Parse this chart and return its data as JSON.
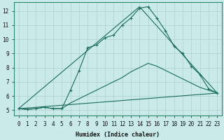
{
  "xlabel": "Humidex (Indice chaleur)",
  "background_color": "#caeaea",
  "grid_color": "#b0d4d4",
  "line_color": "#1a6b5a",
  "xlim": [
    -0.5,
    23.5
  ],
  "ylim": [
    4.6,
    12.6
  ],
  "xticks": [
    0,
    1,
    2,
    3,
    4,
    5,
    6,
    7,
    8,
    9,
    10,
    11,
    12,
    13,
    14,
    15,
    16,
    17,
    18,
    19,
    20,
    21,
    22,
    23
  ],
  "yticks": [
    5,
    6,
    7,
    8,
    9,
    10,
    11,
    12
  ],
  "line1_x": [
    0,
    1,
    2,
    3,
    4,
    5,
    6,
    7,
    8,
    9,
    10,
    11,
    12,
    13,
    14,
    15,
    16,
    17,
    18,
    19,
    20,
    21,
    22,
    23
  ],
  "line1_y": [
    5.1,
    5.05,
    5.1,
    5.2,
    5.1,
    5.1,
    6.4,
    7.8,
    9.4,
    9.6,
    10.1,
    10.3,
    11.0,
    11.5,
    12.2,
    12.3,
    11.5,
    10.6,
    9.5,
    9.0,
    8.1,
    7.5,
    6.5,
    6.2
  ],
  "line2_x": [
    0,
    1,
    2,
    3,
    4,
    5,
    6,
    7,
    8,
    9,
    10,
    11,
    12,
    13,
    14,
    15,
    16,
    17,
    18,
    19,
    20,
    21,
    22,
    23
  ],
  "line2_y": [
    5.1,
    5.05,
    5.1,
    5.2,
    5.1,
    5.1,
    5.5,
    5.8,
    6.1,
    6.4,
    6.7,
    7.0,
    7.3,
    7.7,
    8.0,
    8.3,
    8.1,
    7.8,
    7.5,
    7.2,
    6.9,
    6.6,
    6.4,
    6.2
  ],
  "line3_x": [
    0,
    14,
    23
  ],
  "line3_y": [
    5.1,
    12.3,
    6.2
  ],
  "line4_x": [
    0,
    23
  ],
  "line4_y": [
    5.1,
    6.2
  ]
}
